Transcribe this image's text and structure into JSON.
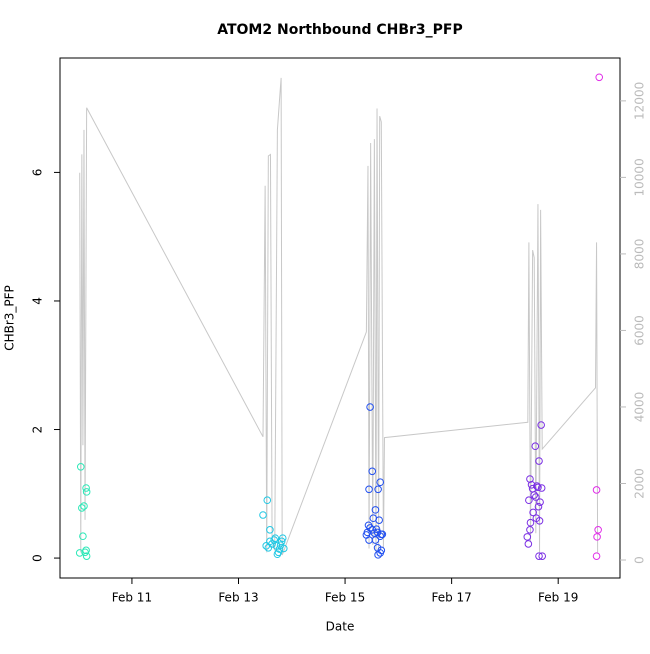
{
  "chart_data": {
    "type": "scatter",
    "title": "ATOM2 Northbound CHBr3_PFP",
    "xlabel": "Date",
    "ylabel": "CHBr3_PFP",
    "xlim": [
      9.65,
      20.16
    ],
    "xticks": [
      {
        "value": 11,
        "label": "Feb 11"
      },
      {
        "value": 13,
        "label": "Feb 13"
      },
      {
        "value": 15,
        "label": "Feb 15"
      },
      {
        "value": 17,
        "label": "Feb 17"
      },
      {
        "value": 19,
        "label": "Feb 19"
      }
    ],
    "ylim": [
      -0.31,
      7.78
    ],
    "yticks": [
      0,
      2,
      4,
      6
    ],
    "y2lim": [
      -470,
      13120
    ],
    "y2ticks": [
      0,
      2000,
      4000,
      6000,
      8000,
      10000,
      12000
    ],
    "y2_color": "#bbbbbb",
    "series": [
      {
        "type": "line",
        "axis": "y2",
        "color": "#c8c8c8",
        "x": [
          10.02,
          10.04,
          10.06,
          10.08,
          10.1,
          10.12,
          10.15,
          13.46,
          13.5,
          13.53,
          13.56,
          13.6,
          13.63,
          13.68,
          13.73,
          13.77,
          13.8,
          13.82,
          15.4,
          15.43,
          15.45,
          15.48,
          15.52,
          15.55,
          15.58,
          15.6,
          15.63,
          15.65,
          15.68,
          15.72,
          15.74,
          18.43,
          18.45,
          18.48,
          18.52,
          18.55,
          18.58,
          18.62,
          18.65,
          18.67,
          18.7,
          19.7,
          19.72,
          19.74
        ],
        "values": [
          10120,
          200,
          10600,
          3000,
          11240,
          1050,
          11820,
          3220,
          9780,
          200,
          10560,
          10600,
          600,
          250,
          11240,
          12030,
          12600,
          130,
          5960,
          10300,
          300,
          10900,
          400,
          11000,
          200,
          11800,
          300,
          11600,
          11450,
          300,
          3200,
          3600,
          8300,
          500,
          8100,
          7900,
          700,
          9300,
          200,
          9150,
          2900,
          4500,
          8300,
          200
        ]
      },
      {
        "type": "scatter",
        "color": "#2ee8b8",
        "x": [
          10.02,
          10.04,
          10.06,
          10.08,
          10.1,
          10.12,
          10.14,
          10.14,
          10.15,
          10.15
        ],
        "values": [
          0.08,
          1.42,
          0.78,
          0.34,
          0.81,
          0.09,
          0.12,
          1.09,
          1.03,
          0.03
        ]
      },
      {
        "type": "scatter",
        "color": "#22c8e4",
        "x": [
          13.46,
          13.54,
          13.52,
          13.56,
          13.59,
          13.59,
          13.63,
          13.67,
          13.69,
          13.71,
          13.73,
          13.75,
          13.77,
          13.79,
          13.81,
          13.83,
          13.85
        ],
        "values": [
          0.67,
          0.9,
          0.19,
          0.16,
          0.44,
          0.26,
          0.22,
          0.28,
          0.31,
          0.19,
          0.06,
          0.09,
          0.14,
          0.2,
          0.26,
          0.31,
          0.15
        ]
      },
      {
        "type": "scatter",
        "color": "#2250f0",
        "x": [
          15.47,
          15.51,
          15.45,
          15.66,
          15.62,
          15.57,
          15.53,
          15.44,
          15.4,
          15.47,
          15.51,
          15.55,
          15.59,
          15.61,
          15.64,
          15.66,
          15.68,
          15.7,
          15.57,
          15.61,
          15.62,
          15.66,
          15.68,
          15.45,
          15.42
        ],
        "values": [
          2.35,
          1.35,
          1.07,
          1.18,
          1.07,
          0.75,
          0.62,
          0.51,
          0.36,
          0.47,
          0.44,
          0.39,
          0.45,
          0.4,
          0.59,
          0.34,
          0.37,
          0.37,
          0.28,
          0.16,
          0.05,
          0.08,
          0.12,
          0.28,
          0.4
        ]
      },
      {
        "type": "scatter",
        "color": "#7a2ee4",
        "x": [
          18.47,
          18.57,
          18.64,
          18.68,
          18.5,
          18.45,
          18.42,
          18.48,
          18.52,
          18.55,
          18.58,
          18.6,
          18.62,
          18.66,
          18.44,
          18.47,
          18.53,
          18.59,
          18.63,
          18.65,
          18.69,
          18.64,
          18.7
        ],
        "values": [
          1.23,
          1.74,
          1.51,
          2.07,
          1.14,
          0.9,
          0.33,
          0.55,
          1.08,
          0.98,
          0.95,
          1.12,
          1.1,
          0.87,
          0.22,
          0.44,
          0.71,
          0.62,
          0.8,
          0.58,
          1.09,
          0.03,
          0.03
        ]
      },
      {
        "type": "scatter",
        "color": "#e02ee8",
        "x": [
          19.77,
          19.72,
          19.75,
          19.73,
          19.72
        ],
        "values": [
          7.48,
          1.06,
          0.44,
          0.33,
          0.03
        ]
      }
    ]
  }
}
